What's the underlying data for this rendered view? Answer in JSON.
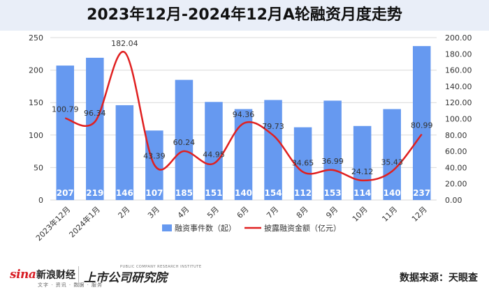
{
  "title": "2023年12月-2024年12月A轮融资月度走势",
  "chart_data": {
    "type": "bar+line",
    "title": "2023年12月-2024年12月A轮融资月度走势",
    "categories": [
      "2023年12月",
      "2024年1月",
      "2月",
      "3月",
      "4月",
      "5月",
      "6月",
      "7月",
      "8月",
      "9月",
      "10月",
      "11月",
      "12月"
    ],
    "series": [
      {
        "name": "融资事件数（起）",
        "type": "bar",
        "axis": "left",
        "color": "#6699f0",
        "values": [
          207,
          219,
          146,
          107,
          185,
          151,
          140,
          154,
          112,
          153,
          114,
          140,
          237
        ]
      },
      {
        "name": "披露融资金额（亿元）",
        "type": "line",
        "smooth": true,
        "axis": "right",
        "color": "#e02020",
        "values": [
          100.79,
          96.34,
          182.04,
          43.39,
          60.24,
          44.95,
          94.36,
          79.73,
          34.65,
          36.99,
          24.12,
          35.43,
          80.99
        ]
      }
    ],
    "y_left": {
      "min": 0,
      "max": 250,
      "ticks": [
        0,
        50,
        100,
        150,
        200,
        250
      ]
    },
    "y_right": {
      "min": 0,
      "max": 200,
      "ticks": [
        "0.00",
        "20.00",
        "40.00",
        "60.00",
        "80.00",
        "100.00",
        "120.00",
        "140.00",
        "160.00",
        "180.00",
        "200.00"
      ]
    },
    "grid": true,
    "legend": "bottom"
  },
  "footer": {
    "logo_sina": "sina",
    "logo_sina_cn": "新浪财经",
    "logo_sina_sub": "文字 · 资讯 · 数据 · 服务",
    "logo_institute_cn": "上市公司研究院",
    "logo_institute_en": "PUBLIC COMPANY RESEARCH INSTITUTE",
    "source": "数据来源：天眼查"
  }
}
